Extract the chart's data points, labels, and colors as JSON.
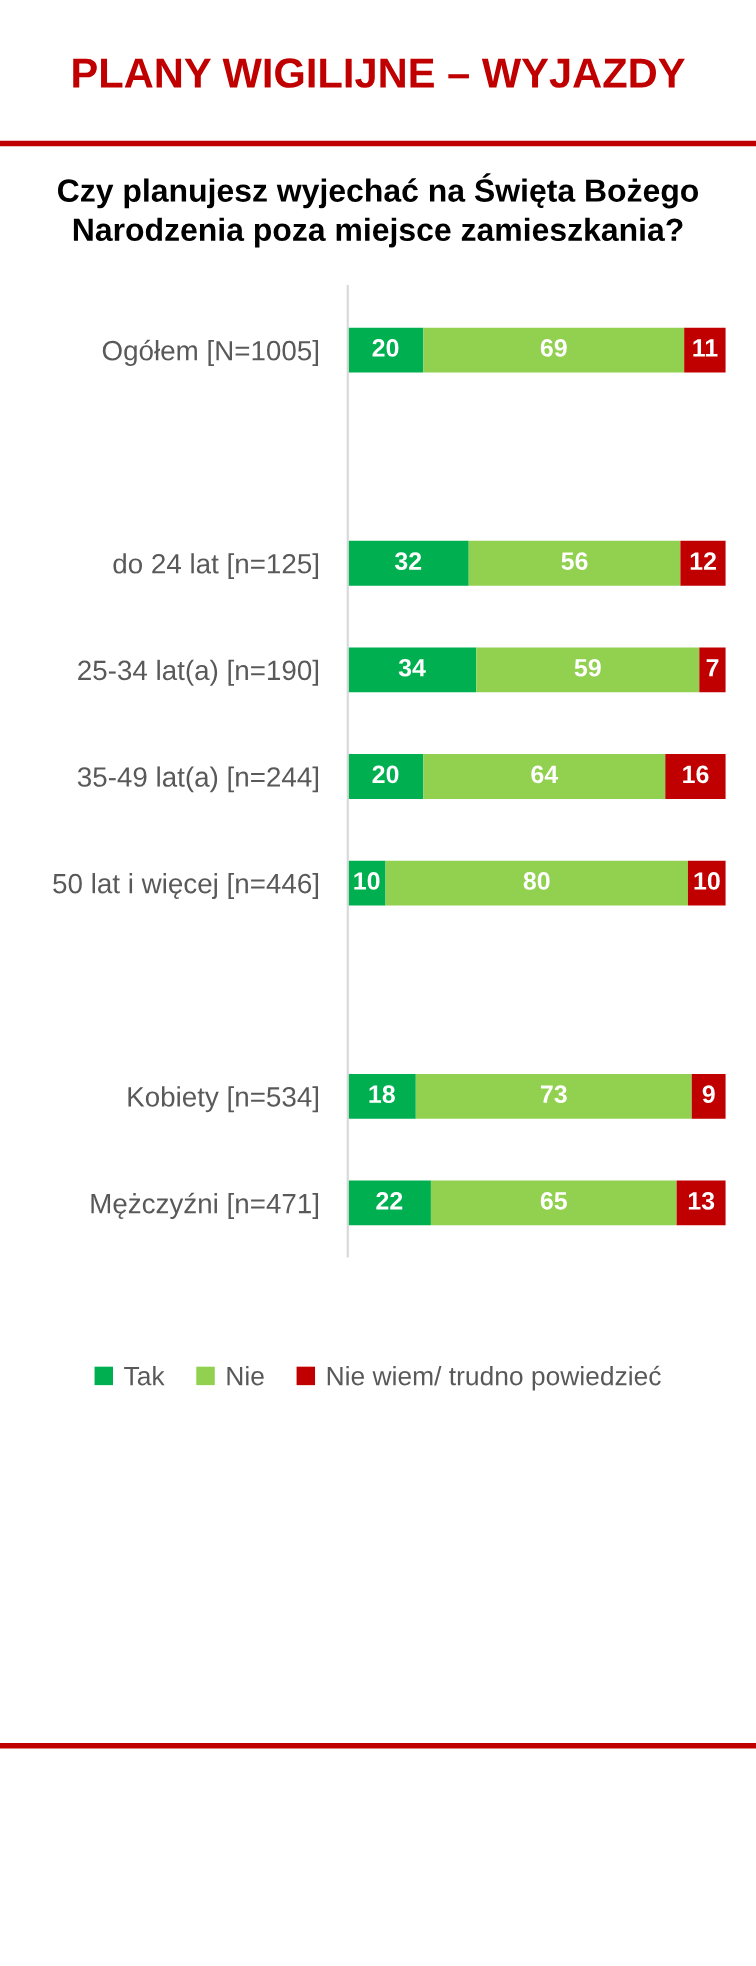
{
  "chart_data": {
    "type": "bar",
    "orientation": "horizontal",
    "stacked": true,
    "data_labels": true,
    "legend": "bottom",
    "grid": false,
    "title": "PLANY WIGILIJNE – WYJAZDY",
    "subtitle": "Czy planujesz wyjechać na Święta Bożego Narodzenia poza miejsce zamieszkania?",
    "categories": [
      "Ogółem [N=1005]",
      null,
      "do 24 lat [n=125]",
      "25-34 lat(a) [n=190]",
      "35-49 lat(a) [n=244]",
      "50 lat i więcej [n=446]",
      null,
      "Kobiety [n=534]",
      "Mężczyźni [n=471]"
    ],
    "series": [
      {
        "name": "Tak",
        "color": "#00b050",
        "values": [
          20,
          null,
          32,
          34,
          20,
          10,
          null,
          18,
          22
        ]
      },
      {
        "name": "Nie",
        "color": "#92d050",
        "values": [
          69,
          null,
          56,
          59,
          64,
          80,
          null,
          73,
          65
        ]
      },
      {
        "name": "Nie wiem/ trudno powiedzieć",
        "color": "#c00000",
        "values": [
          11,
          null,
          12,
          7,
          16,
          10,
          null,
          9,
          13
        ]
      }
    ]
  }
}
